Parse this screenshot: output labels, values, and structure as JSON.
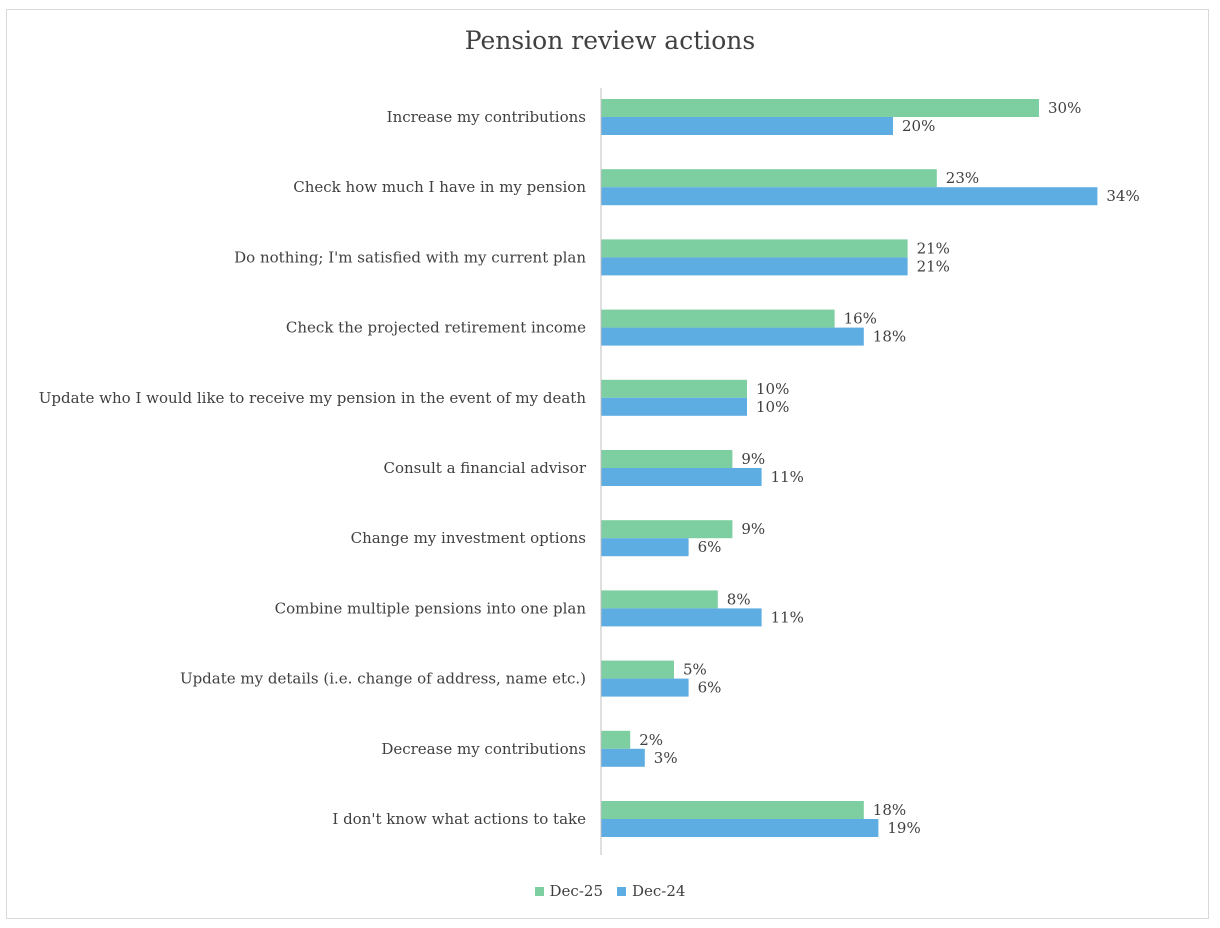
{
  "chart_data": {
    "type": "bar",
    "orientation": "horizontal",
    "title": "Pension review actions",
    "categories": [
      "Increase my contributions",
      "Check how much I have in my pension",
      "Do nothing; I'm satisfied with my current plan",
      "Check the projected retirement income",
      "Update who I would like to receive my pension in the event of my death",
      "Consult a financial advisor",
      "Change my investment options",
      "Combine multiple pensions into one plan",
      "Update my details (i.e. change of address, name etc.)",
      "Decrease my contributions",
      "I don't know what actions to take"
    ],
    "series": [
      {
        "name": "Dec-25",
        "color": "#7dcea0",
        "values": [
          30,
          23,
          21,
          16,
          10,
          9,
          9,
          8,
          5,
          2,
          18
        ]
      },
      {
        "name": "Dec-24",
        "color": "#5dade2",
        "values": [
          20,
          34,
          21,
          18,
          10,
          11,
          6,
          11,
          6,
          3,
          19
        ]
      }
    ],
    "value_suffix": "%",
    "xlim": [
      0,
      35
    ],
    "grid": false,
    "legend_position": "bottom"
  }
}
